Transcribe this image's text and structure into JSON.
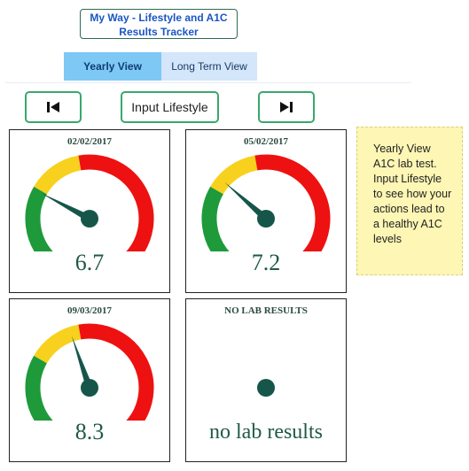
{
  "header": {
    "title": "My Way - Lifestyle and A1C Results Tracker"
  },
  "tabs": [
    {
      "label": "Yearly View",
      "active": true
    },
    {
      "label": "Long Term View",
      "active": false
    }
  ],
  "nav": {
    "prev_icon": "skip-back-icon",
    "input_label": "Input Lifestyle",
    "next_icon": "skip-forward-icon"
  },
  "panels": [
    {
      "date": "02/02/2017",
      "value": "6.7",
      "needle": 6.7
    },
    {
      "date": "05/02/2017",
      "value": "7.2",
      "needle": 7.2
    },
    {
      "date": "09/03/2017",
      "value": "8.3",
      "needle": 8.3
    },
    {
      "date": "NO LAB RESULTS",
      "value": "no lab results",
      "needle": null
    }
  ],
  "note": {
    "text": "Yearly View A1C lab test. Input Lifestyle to see how your actions lead to a healthy A1C levels"
  },
  "colors": {
    "green": "#1e9a3a",
    "yellow": "#f7d11e",
    "red": "#ee1111",
    "needle": "#16564a",
    "accent_tab": "#7ec8f4"
  }
}
